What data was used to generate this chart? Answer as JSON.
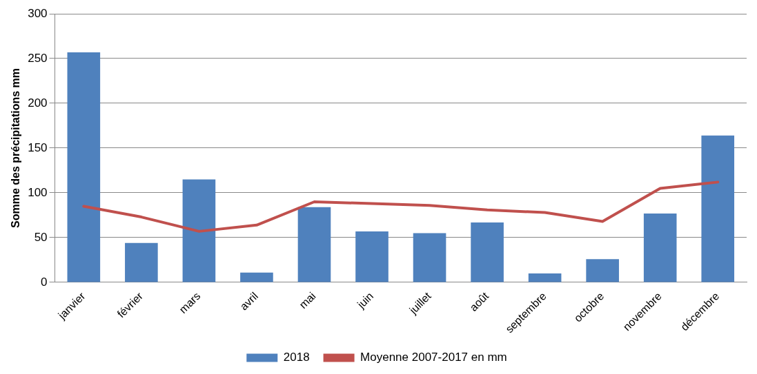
{
  "chart_data": {
    "type": "bar",
    "ylabel": "Somme des précipitations mm",
    "categories": [
      "janvier",
      "février",
      "mars",
      "avril",
      "mai",
      "juin",
      "juillet",
      "août",
      "septembre",
      "octobre",
      "novembre",
      "décembre"
    ],
    "series": [
      {
        "name": "2018",
        "color": "#4f81bd",
        "values": [
          257,
          44,
          115,
          11,
          84,
          57,
          55,
          67,
          10,
          26,
          77,
          164
        ]
      },
      {
        "name": "Moyenne 2007-2017 en mm",
        "type": "line",
        "color": "#c0504d",
        "values": [
          85,
          73,
          57,
          64,
          90,
          88,
          86,
          81,
          78,
          68,
          105,
          112
        ]
      }
    ],
    "ylim": [
      0,
      300
    ],
    "yticks": [
      0,
      50,
      100,
      150,
      200,
      250,
      300
    ],
    "grid": "y",
    "legend": "bottom",
    "marker": "none"
  }
}
